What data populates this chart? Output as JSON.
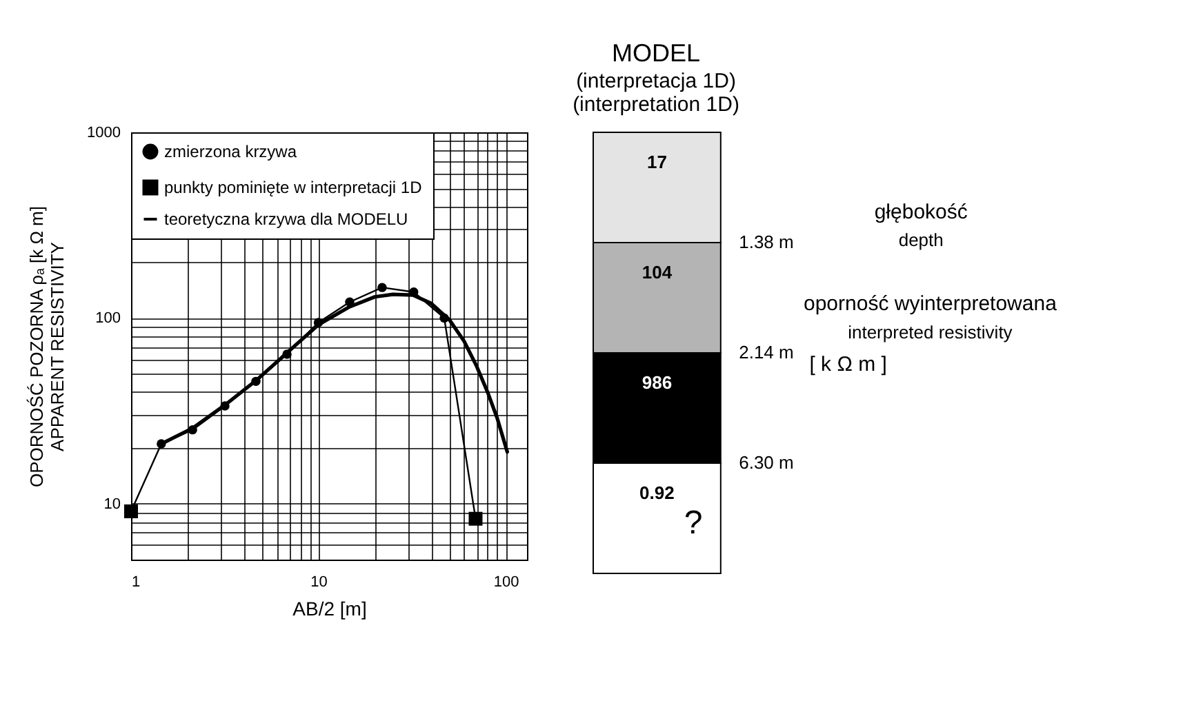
{
  "chart_data": [
    {
      "type": "line",
      "xlabel": "AB/2 [m]",
      "ylabel": "OPORNOŚĆ POZORNA ρₐ   [k Ω m]\nAPPARENT RESISTIVITY",
      "log": "xy",
      "xlim": [
        1,
        130
      ],
      "ylim": [
        5,
        1000
      ],
      "xticks": [
        1,
        10,
        100
      ],
      "yticks": [
        10,
        100,
        1000
      ],
      "grid": true,
      "legend": "top left",
      "series": [
        {
          "name": "zmierzona krzywa",
          "color": "#000000",
          "marker": "circle",
          "x": [
            1,
            1.45,
            2.13,
            3.17,
            4.64,
            6.8,
            10,
            14.7,
            21.9,
            32.3,
            47,
            69.1
          ],
          "values": [
            9.1,
            21,
            25,
            33.6,
            45.6,
            63.8,
            94.6,
            122,
            146,
            138,
            100,
            8.3
          ]
        },
        {
          "name": "punkty pominięte w interpretacji 1D",
          "type": "scatter",
          "marker": "square",
          "color": "#000000",
          "x": [
            1,
            69.1
          ],
          "values": [
            9.1,
            8.3
          ]
        },
        {
          "name": "teoretyczna krzywa dla MODELU",
          "color": "#000000",
          "marker": "none",
          "x": [
            1.45,
            2.13,
            3.17,
            4.64,
            6.8,
            10,
            14.7,
            20,
            25,
            32,
            40,
            50,
            60,
            70,
            80,
            90,
            102
          ],
          "values": [
            21,
            25.5,
            34,
            46,
            65,
            92,
            115,
            130,
            134,
            133,
            120,
            98,
            75,
            55,
            40,
            29,
            19
          ]
        }
      ]
    },
    {
      "type": "other",
      "title": "MODEL",
      "subtitle": "(interpretacja 1D)\n(interpretation 1D)",
      "categories": [
        "17",
        "104",
        "986",
        "0.92"
      ],
      "colors": [
        "#e4e4e4",
        "#b4b4b4",
        "#000000",
        "#ffffff"
      ],
      "annotations": [
        "1.38 m",
        "2.14 m",
        "6.30 m",
        "głębokość",
        "depth",
        "oporność wyinterpretowana",
        "interpreted resistivity",
        "[ k Ω m ]",
        "?"
      ]
    }
  ]
}
